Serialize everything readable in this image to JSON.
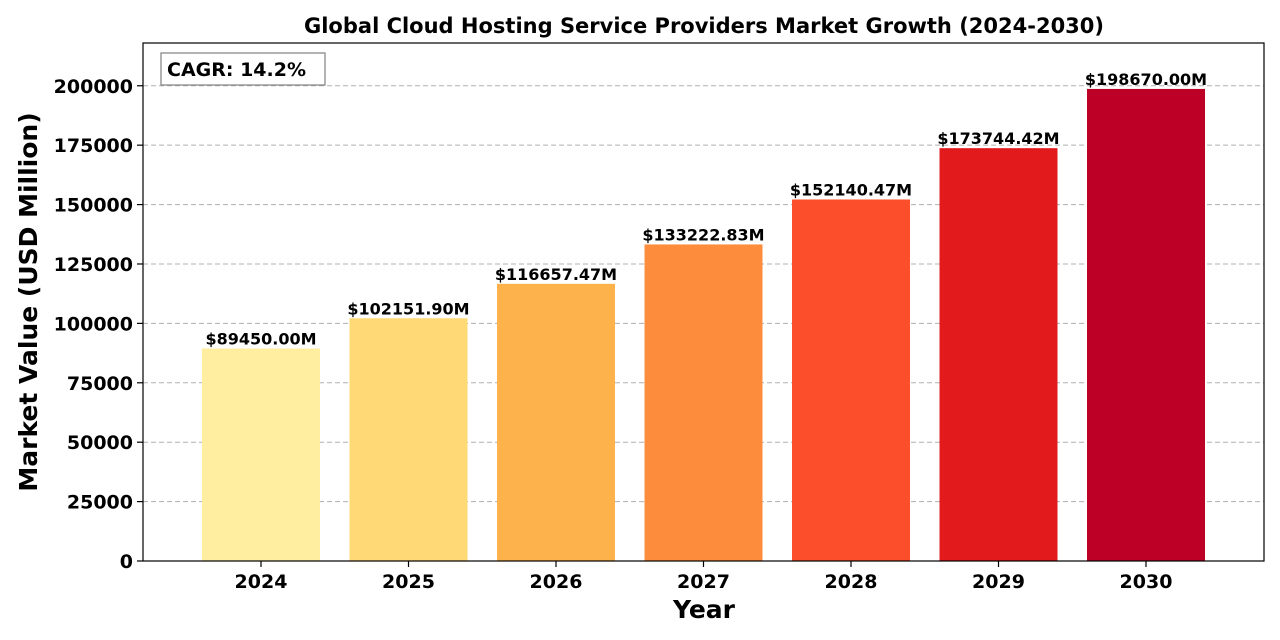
{
  "chart_data": {
    "type": "bar",
    "title": "Global Cloud Hosting Service Providers Market Growth (2024-2030)",
    "xlabel": "Year",
    "ylabel": "Market Value (USD Million)",
    "categories": [
      "2024",
      "2025",
      "2026",
      "2027",
      "2028",
      "2029",
      "2030"
    ],
    "values": [
      89450.0,
      102151.9,
      116657.47,
      133222.83,
      152140.47,
      173744.42,
      198670.0
    ],
    "value_labels": [
      "$89450.00M",
      "$102151.90M",
      "$116657.47M",
      "$133222.83M",
      "$152140.47M",
      "$173744.42M",
      "$198670.00M"
    ],
    "bar_colors": [
      "#ffeda0",
      "#fed976",
      "#feb24c",
      "#fd8d3c",
      "#fc4e2a",
      "#e31a1c",
      "#bd0026"
    ],
    "ylim": [
      0,
      218000
    ],
    "yticks": [
      0,
      25000,
      50000,
      75000,
      100000,
      125000,
      150000,
      175000,
      200000
    ],
    "grid": true,
    "annotation": "CAGR: 14.2%",
    "annotation_position": "top-left"
  }
}
